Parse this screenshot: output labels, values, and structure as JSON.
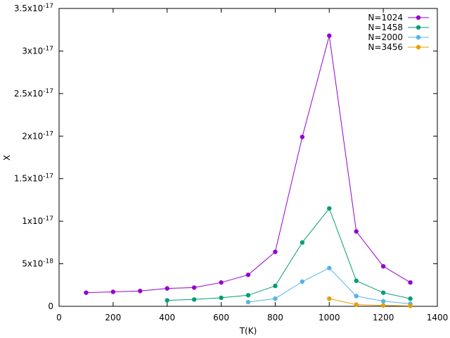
{
  "chart_data": {
    "type": "line",
    "title": "",
    "xlabel": "T(K)",
    "ylabel": "X",
    "xlim": [
      0,
      1400
    ],
    "ylim": [
      0,
      3.5e-17
    ],
    "xticks": [
      0,
      200,
      400,
      600,
      800,
      1000,
      1200,
      1400
    ],
    "xtick_labels": [
      "0",
      "200",
      "400",
      "600",
      "800",
      "1000",
      "1200",
      "1400"
    ],
    "yticks": [
      0,
      5e-18,
      1e-17,
      1.5e-17,
      2e-17,
      2.5e-17,
      3e-17,
      3.5e-17
    ],
    "ytick_labels": [
      {
        "mantissa": "0",
        "exp": ""
      },
      {
        "mantissa": "5x10",
        "exp": "-18"
      },
      {
        "mantissa": "1x10",
        "exp": "-17"
      },
      {
        "mantissa": "1.5x10",
        "exp": "-17"
      },
      {
        "mantissa": "2x10",
        "exp": "-17"
      },
      {
        "mantissa": "2.5x10",
        "exp": "-17"
      },
      {
        "mantissa": "3x10",
        "exp": "-17"
      },
      {
        "mantissa": "3.5x10",
        "exp": "-17"
      }
    ],
    "grid": false,
    "legend_position": "top-right",
    "series": [
      {
        "name": "N=1024",
        "color": "#9400d3",
        "x": [
          100,
          200,
          300,
          400,
          500,
          600,
          700,
          800,
          900,
          1000,
          1100,
          1200,
          1300
        ],
        "y": [
          1.6e-18,
          1.7e-18,
          1.8e-18,
          2.1e-18,
          2.2e-18,
          2.8e-18,
          3.7e-18,
          6.4e-18,
          1.99e-17,
          3.18e-17,
          8.8e-18,
          4.7e-18,
          2.8e-18
        ]
      },
      {
        "name": "N=1458",
        "color": "#009e73",
        "x": [
          400,
          500,
          600,
          700,
          800,
          900,
          1000,
          1100,
          1200,
          1300
        ],
        "y": [
          7e-19,
          8e-19,
          1e-18,
          1.3e-18,
          2.4e-18,
          7.5e-18,
          1.15e-17,
          3e-18,
          1.6e-18,
          9e-19
        ]
      },
      {
        "name": "N=2000",
        "color": "#56b4e9",
        "x": [
          700,
          800,
          900,
          1000,
          1100,
          1200,
          1300
        ],
        "y": [
          5e-19,
          9e-19,
          2.9e-18,
          4.5e-18,
          1.2e-18,
          6e-19,
          3e-19
        ]
      },
      {
        "name": "N=3456",
        "color": "#e69f00",
        "x": [
          1000,
          1100,
          1200,
          1300
        ],
        "y": [
          9e-19,
          2e-19,
          1e-19,
          5e-20
        ]
      }
    ]
  }
}
